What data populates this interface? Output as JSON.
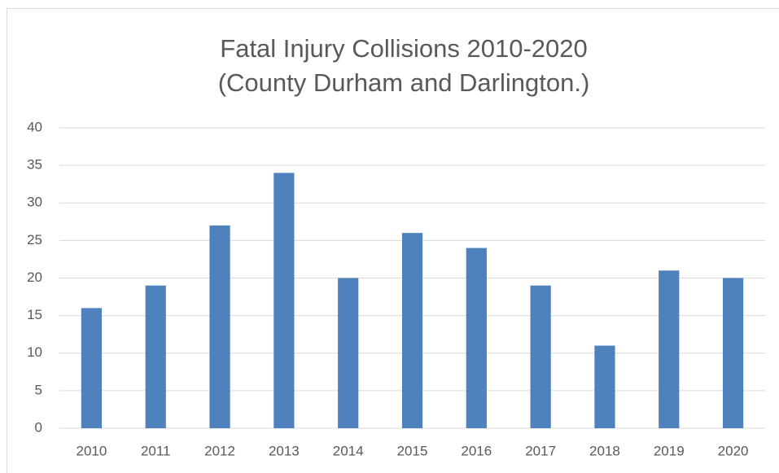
{
  "chart_data": {
    "type": "bar",
    "title": [
      "Fatal Injury Collisions 2010-2020",
      "(County Durham and Darlington.)"
    ],
    "categories": [
      "2010",
      "2011",
      "2012",
      "2013",
      "2014",
      "2015",
      "2016",
      "2017",
      "2018",
      "2019",
      "2020"
    ],
    "values": [
      16,
      19,
      27,
      34,
      20,
      26,
      24,
      19,
      11,
      21,
      20
    ],
    "color": "#4f81bd",
    "ylim": [
      0,
      40
    ],
    "yticks": [
      0,
      5,
      10,
      15,
      20,
      25,
      30,
      35,
      40
    ],
    "grid": true
  }
}
